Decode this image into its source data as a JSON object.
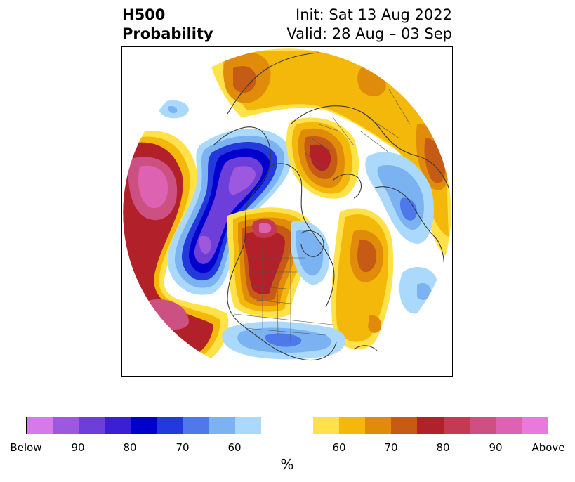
{
  "title": {
    "left_line1": "H500",
    "left_line2": "Probability",
    "right_line1": "Init: Sat 13 Aug 2022",
    "right_line2": "Valid: 28 Aug – 03 Sep"
  },
  "colorbar": {
    "unit": "%",
    "colors": [
      "#d57ae8",
      "#9c59e0",
      "#6d3ed9",
      "#3b1fd6",
      "#0000cd",
      "#2439dd",
      "#4f78e8",
      "#7ab2f2",
      "#aad9fb",
      "#ffffff",
      "#ffffff",
      "#ffe24a",
      "#f4b80a",
      "#e08c0a",
      "#c65b16",
      "#b2202a",
      "#c33a52",
      "#cd5083",
      "#de62b2",
      "#e87ade"
    ],
    "tick_labels": [
      "Below",
      "90",
      "80",
      "70",
      "60",
      "60",
      "70",
      "80",
      "90",
      "Above"
    ]
  },
  "map": {
    "projection": "north-polar-stereographic",
    "field": "500 hPa height probability"
  }
}
